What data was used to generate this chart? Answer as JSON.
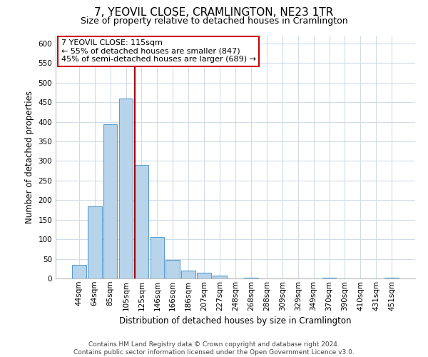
{
  "title": "7, YEOVIL CLOSE, CRAMLINGTON, NE23 1TR",
  "subtitle": "Size of property relative to detached houses in Cramlington",
  "xlabel": "Distribution of detached houses by size in Cramlington",
  "ylabel": "Number of detached properties",
  "bar_labels": [
    "44sqm",
    "64sqm",
    "85sqm",
    "105sqm",
    "125sqm",
    "146sqm",
    "166sqm",
    "186sqm",
    "207sqm",
    "227sqm",
    "248sqm",
    "268sqm",
    "288sqm",
    "309sqm",
    "329sqm",
    "349sqm",
    "370sqm",
    "390sqm",
    "410sqm",
    "431sqm",
    "451sqm"
  ],
  "bar_values": [
    35,
    185,
    393,
    460,
    290,
    105,
    48,
    20,
    15,
    8,
    0,
    2,
    0,
    0,
    0,
    0,
    1,
    0,
    0,
    0,
    1
  ],
  "bar_color": "#b8d4ea",
  "bar_edge_color": "#5a9fd4",
  "property_label": "7 YEOVIL CLOSE: 115sqm",
  "annotation_line1": "← 55% of detached houses are smaller (847)",
  "annotation_line2": "45% of semi-detached houses are larger (689) →",
  "property_line_color": "#aa0000",
  "annotation_box_edge": "#cc0000",
  "ylim": [
    0,
    620
  ],
  "yticks": [
    0,
    50,
    100,
    150,
    200,
    250,
    300,
    350,
    400,
    450,
    500,
    550,
    600
  ],
  "footer_line1": "Contains HM Land Registry data © Crown copyright and database right 2024.",
  "footer_line2": "Contains public sector information licensed under the Open Government Licence v3.0.",
  "background_color": "#ffffff",
  "grid_color": "#d0dce8",
  "title_fontsize": 11,
  "subtitle_fontsize": 9,
  "axis_label_fontsize": 8.5,
  "tick_fontsize": 7.5,
  "annotation_fontsize": 8,
  "footer_fontsize": 6.5
}
